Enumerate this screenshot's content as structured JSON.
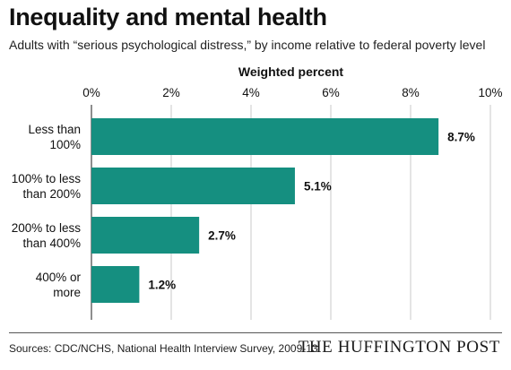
{
  "colors": {
    "bar": "#158f80",
    "grid": "#c8c8c8",
    "axis": "#444444",
    "text": "#111111"
  },
  "footer": {
    "source": "Sources: CDC/NCHS, National Health Interview Survey, 2009-13",
    "logo": "THE HUFFINGTON POST"
  },
  "chart_data": {
    "type": "bar",
    "orientation": "horizontal",
    "title": "Inequality and mental health",
    "subtitle": "Adults with “serious psychological distress,” by income relative to federal poverty level",
    "xlabel": "Weighted percent",
    "ylabel": "",
    "xlim": [
      0,
      10
    ],
    "ticks": [
      0,
      2,
      4,
      6,
      8,
      10
    ],
    "tick_labels": [
      "0%",
      "2%",
      "4%",
      "6%",
      "8%",
      "10%"
    ],
    "grid": true,
    "categories": [
      [
        "Less than",
        "100%"
      ],
      [
        "100% to less",
        "than 200%"
      ],
      [
        "200% to less",
        "than 400%"
      ],
      [
        "400% or",
        "more"
      ]
    ],
    "values": [
      8.7,
      5.1,
      2.7,
      1.2
    ],
    "data_labels": [
      "8.7%",
      "5.1%",
      "2.7%",
      "1.2%"
    ]
  }
}
